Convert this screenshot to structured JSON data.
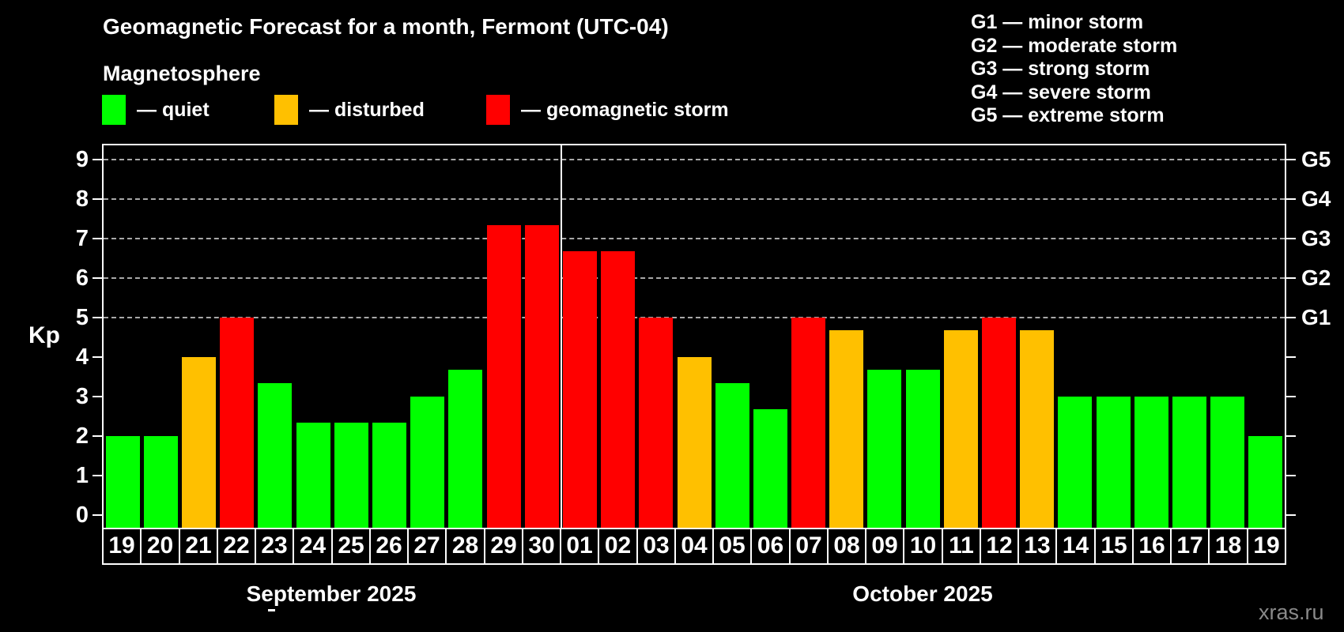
{
  "title": "Geomagnetic Forecast for a month, Fermont (UTC-04)",
  "subtitle": "Magnetosphere",
  "legend": {
    "quiet_label": "— quiet",
    "disturbed_label": "— disturbed",
    "storm_label": "— geomagnetic storm"
  },
  "g_legend": [
    "G1 — minor storm",
    "G2 — moderate storm",
    "G3 — strong storm",
    "G4 — severe storm",
    "G5 — extreme storm"
  ],
  "watermark": "xras.ru",
  "colors": {
    "quiet": "#00FF00",
    "disturbed": "#FFC000",
    "storm": "#FF0000",
    "gridline": "#A8A8A8",
    "axis": "#FFFFFF",
    "background": "#000000",
    "watermark": "#8A8A8A"
  },
  "chart_data": {
    "type": "bar",
    "title": "Geomagnetic Forecast for a month, Fermont (UTC-04)",
    "xlabel": "",
    "ylabel": "Kp",
    "ylim": [
      0,
      9
    ],
    "yticks": [
      0,
      1,
      2,
      3,
      4,
      5,
      6,
      7,
      8,
      9
    ],
    "gridlines_at_kp": [
      5,
      6,
      7,
      8,
      9
    ],
    "grid": "dashed horizontal at storm levels only",
    "legend_position": "top-left",
    "right_axis_labels": [
      {
        "label": "G1",
        "kp": 5
      },
      {
        "label": "G2",
        "kp": 6
      },
      {
        "label": "G3",
        "kp": 7
      },
      {
        "label": "G4",
        "kp": 8
      },
      {
        "label": "G5",
        "kp": 9
      }
    ],
    "months": [
      {
        "label": "September 2025",
        "days": [
          {
            "day": "19",
            "kp": 2.0,
            "status": "quiet"
          },
          {
            "day": "20",
            "kp": 2.0,
            "status": "quiet"
          },
          {
            "day": "21",
            "kp": 4.0,
            "status": "disturbed"
          },
          {
            "day": "22",
            "kp": 5.0,
            "status": "storm"
          },
          {
            "day": "23",
            "kp": 3.33,
            "status": "quiet"
          },
          {
            "day": "24",
            "kp": 2.33,
            "status": "quiet"
          },
          {
            "day": "25",
            "kp": 2.33,
            "status": "quiet"
          },
          {
            "day": "26",
            "kp": 2.33,
            "status": "quiet"
          },
          {
            "day": "27",
            "kp": 3.0,
            "status": "quiet"
          },
          {
            "day": "28",
            "kp": 3.67,
            "status": "quiet"
          },
          {
            "day": "29",
            "kp": 7.33,
            "status": "storm"
          },
          {
            "day": "30",
            "kp": 7.33,
            "status": "storm"
          }
        ]
      },
      {
        "label": "October 2025",
        "days": [
          {
            "day": "01",
            "kp": 6.67,
            "status": "storm"
          },
          {
            "day": "02",
            "kp": 6.67,
            "status": "storm"
          },
          {
            "day": "03",
            "kp": 5.0,
            "status": "storm"
          },
          {
            "day": "04",
            "kp": 4.0,
            "status": "disturbed"
          },
          {
            "day": "05",
            "kp": 3.33,
            "status": "quiet"
          },
          {
            "day": "06",
            "kp": 2.67,
            "status": "quiet"
          },
          {
            "day": "07",
            "kp": 5.0,
            "status": "storm"
          },
          {
            "day": "08",
            "kp": 4.67,
            "status": "disturbed"
          },
          {
            "day": "09",
            "kp": 3.67,
            "status": "quiet"
          },
          {
            "day": "10",
            "kp": 3.67,
            "status": "quiet"
          },
          {
            "day": "11",
            "kp": 4.67,
            "status": "disturbed"
          },
          {
            "day": "12",
            "kp": 5.0,
            "status": "storm"
          },
          {
            "day": "13",
            "kp": 4.67,
            "status": "disturbed"
          },
          {
            "day": "14",
            "kp": 3.0,
            "status": "quiet"
          },
          {
            "day": "15",
            "kp": 3.0,
            "status": "quiet"
          },
          {
            "day": "16",
            "kp": 3.0,
            "status": "quiet"
          },
          {
            "day": "17",
            "kp": 3.0,
            "status": "quiet"
          },
          {
            "day": "18",
            "kp": 3.0,
            "status": "quiet"
          },
          {
            "day": "19",
            "kp": 2.0,
            "status": "quiet"
          }
        ]
      }
    ]
  }
}
